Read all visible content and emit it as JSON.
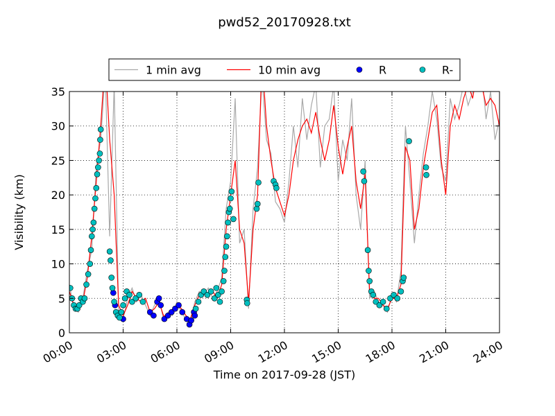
{
  "chart_data": {
    "type": "line",
    "title": "pwd52_20170928.txt",
    "xlabel": "Time on 2017-09-28 (JST)",
    "ylabel": "Visibility (km)",
    "xlim": [
      0,
      24
    ],
    "xticks": [
      {
        "value": 0,
        "label": "00:00"
      },
      {
        "value": 3,
        "label": "03:00"
      },
      {
        "value": 6,
        "label": "06:00"
      },
      {
        "value": 9,
        "label": "09:00"
      },
      {
        "value": 12,
        "label": "12:00"
      },
      {
        "value": 15,
        "label": "15:00"
      },
      {
        "value": 18,
        "label": "18:00"
      },
      {
        "value": 21,
        "label": "21:00"
      },
      {
        "value": 24,
        "label": "24:00"
      }
    ],
    "ylim": [
      0,
      35
    ],
    "yticks": [
      0,
      5,
      10,
      15,
      20,
      25,
      30,
      35
    ],
    "grid": true,
    "legend": "top",
    "x": [
      0,
      0.25,
      0.5,
      0.75,
      1,
      1.25,
      1.5,
      1.75,
      2,
      2.25,
      2.5,
      2.75,
      3,
      3.25,
      3.5,
      3.75,
      4,
      4.25,
      4.5,
      4.75,
      5,
      5.25,
      5.5,
      5.75,
      6,
      6.25,
      6.5,
      6.75,
      7,
      7.25,
      7.5,
      7.75,
      8,
      8.25,
      8.5,
      8.75,
      9,
      9.25,
      9.5,
      9.75,
      10,
      10.25,
      10.5,
      10.75,
      11,
      11.25,
      11.5,
      11.75,
      12,
      12.25,
      12.5,
      12.75,
      13,
      13.25,
      13.5,
      13.75,
      14,
      14.25,
      14.5,
      14.75,
      15,
      15.25,
      15.5,
      15.75,
      16,
      16.25,
      16.5,
      16.75,
      17,
      17.25,
      17.5,
      17.75,
      18,
      18.25,
      18.5,
      18.75,
      19,
      19.25,
      19.5,
      19.75,
      20,
      20.25,
      20.5,
      20.75,
      21,
      21.25,
      21.5,
      21.75,
      22,
      22.25,
      22.5,
      22.75,
      23,
      23.25,
      23.5,
      23.75,
      24
    ],
    "series": [
      {
        "name": "1 min avg",
        "type": "line",
        "color": "#a8a8a8",
        "values": [
          7,
          3.5,
          3,
          5,
          9,
          12,
          24,
          28,
          38,
          14,
          36,
          3,
          2,
          5,
          6.5,
          4.5,
          5.5,
          4,
          2.5,
          4,
          5,
          2,
          3,
          2.5,
          4.5,
          3,
          2,
          1.5,
          4.5,
          6,
          5.5,
          6.5,
          5,
          6,
          8,
          18,
          22,
          34,
          13,
          15,
          3.5,
          18,
          24,
          37,
          28,
          26,
          19,
          18,
          16,
          22,
          30,
          24,
          34,
          28,
          33,
          36,
          24,
          30,
          31,
          36,
          22,
          28,
          25,
          34,
          20,
          15,
          25,
          5,
          6,
          4.5,
          4,
          3,
          5.5,
          4.5,
          9,
          30,
          22,
          13,
          20,
          26,
          30,
          35,
          31,
          24,
          22,
          34,
          31,
          33,
          36,
          33,
          35,
          36,
          38,
          31,
          35,
          28,
          31
        ]
      },
      {
        "name": "10 min avg",
        "type": "line",
        "color": "#ff0000",
        "values": [
          6,
          4,
          3.5,
          4.5,
          8,
          14,
          22,
          30,
          40,
          28,
          20,
          4,
          2.5,
          4,
          6,
          5,
          4.5,
          5,
          3,
          3.5,
          4.5,
          2.5,
          2.5,
          3,
          4,
          3.5,
          2.5,
          2,
          4,
          5.5,
          6,
          5.5,
          6,
          5,
          7,
          15,
          20,
          25,
          15,
          13,
          4.5,
          15,
          20,
          40,
          30,
          25,
          21,
          19,
          17,
          20,
          25,
          28,
          30,
          31,
          29,
          32,
          28,
          25,
          28,
          33,
          27,
          23,
          27,
          30,
          22,
          18,
          23,
          6,
          5,
          5,
          4,
          3.5,
          5,
          5,
          7,
          27,
          25,
          15,
          18,
          24,
          28,
          32,
          33,
          25,
          20,
          30,
          33,
          31,
          34,
          36,
          34,
          38,
          36,
          33,
          34,
          33,
          30
        ]
      },
      {
        "name": "R",
        "type": "scatter",
        "color": "#0000ff",
        "x": [
          2.45,
          2.55,
          3.0,
          4.5,
          4.7,
          4.9,
          5.0,
          5.1,
          5.3,
          5.5,
          5.7,
          5.9,
          6.1,
          6.3,
          6.55,
          6.7,
          6.8,
          6.95,
          7.0
        ],
        "values": [
          5.8,
          4,
          2,
          3,
          2.5,
          4.5,
          5,
          4,
          2,
          2.5,
          3,
          3.5,
          4,
          3,
          2,
          1.2,
          1.8,
          3,
          2.5
        ]
      },
      {
        "name": "R-",
        "type": "scatter",
        "color": "#00bfbf",
        "x": [
          0.05,
          0.15,
          0.25,
          0.35,
          0.45,
          0.55,
          0.65,
          0.75,
          0.85,
          0.95,
          1.05,
          1.15,
          1.2,
          1.25,
          1.3,
          1.35,
          1.4,
          1.45,
          1.5,
          1.55,
          1.6,
          1.65,
          1.7,
          1.72,
          1.75,
          2.25,
          2.3,
          2.35,
          2.4,
          2.5,
          2.6,
          2.7,
          2.8,
          2.9,
          3.0,
          3.1,
          3.2,
          3.35,
          3.5,
          3.7,
          3.9,
          4.1,
          7.05,
          7.2,
          7.35,
          7.5,
          7.7,
          7.9,
          8.1,
          8.2,
          8.3,
          8.4,
          8.5,
          8.6,
          8.65,
          8.7,
          8.75,
          8.8,
          8.85,
          8.9,
          8.95,
          9.0,
          9.05,
          9.15,
          9.9,
          9.92,
          10.45,
          10.5,
          10.55,
          11.4,
          11.5,
          11.55,
          16.4,
          16.45,
          16.65,
          16.7,
          16.75,
          16.85,
          16.95,
          17.1,
          17.3,
          17.5,
          17.7,
          17.9,
          18.1,
          18.3,
          18.5,
          18.6,
          18.65,
          18.95,
          19.9,
          19.92
        ],
        "values": [
          6.5,
          5,
          4,
          3.5,
          3.5,
          4,
          5,
          4.5,
          5,
          7,
          8.5,
          10,
          12,
          14,
          15,
          16,
          18,
          19.5,
          21,
          23,
          24,
          25,
          26,
          28,
          29.5,
          11.8,
          10.5,
          8,
          6.5,
          4.5,
          3,
          2.5,
          2.2,
          3,
          4,
          5,
          6,
          5.5,
          4.5,
          5,
          5.5,
          4.5,
          3.5,
          4.5,
          5.5,
          6,
          5.5,
          6,
          5,
          6.5,
          5.5,
          4.5,
          6,
          7.5,
          9,
          11,
          12.5,
          14,
          16,
          17.5,
          18,
          19.5,
          20.5,
          16.5,
          4.8,
          4.3,
          18,
          18.7,
          21.8,
          22,
          21.5,
          21,
          23.4,
          22,
          12,
          9,
          7.5,
          6,
          5.5,
          4.5,
          4,
          4.5,
          3.5,
          5,
          5.5,
          5,
          6,
          7.5,
          8,
          27.8,
          24,
          22.9
        ]
      }
    ]
  }
}
